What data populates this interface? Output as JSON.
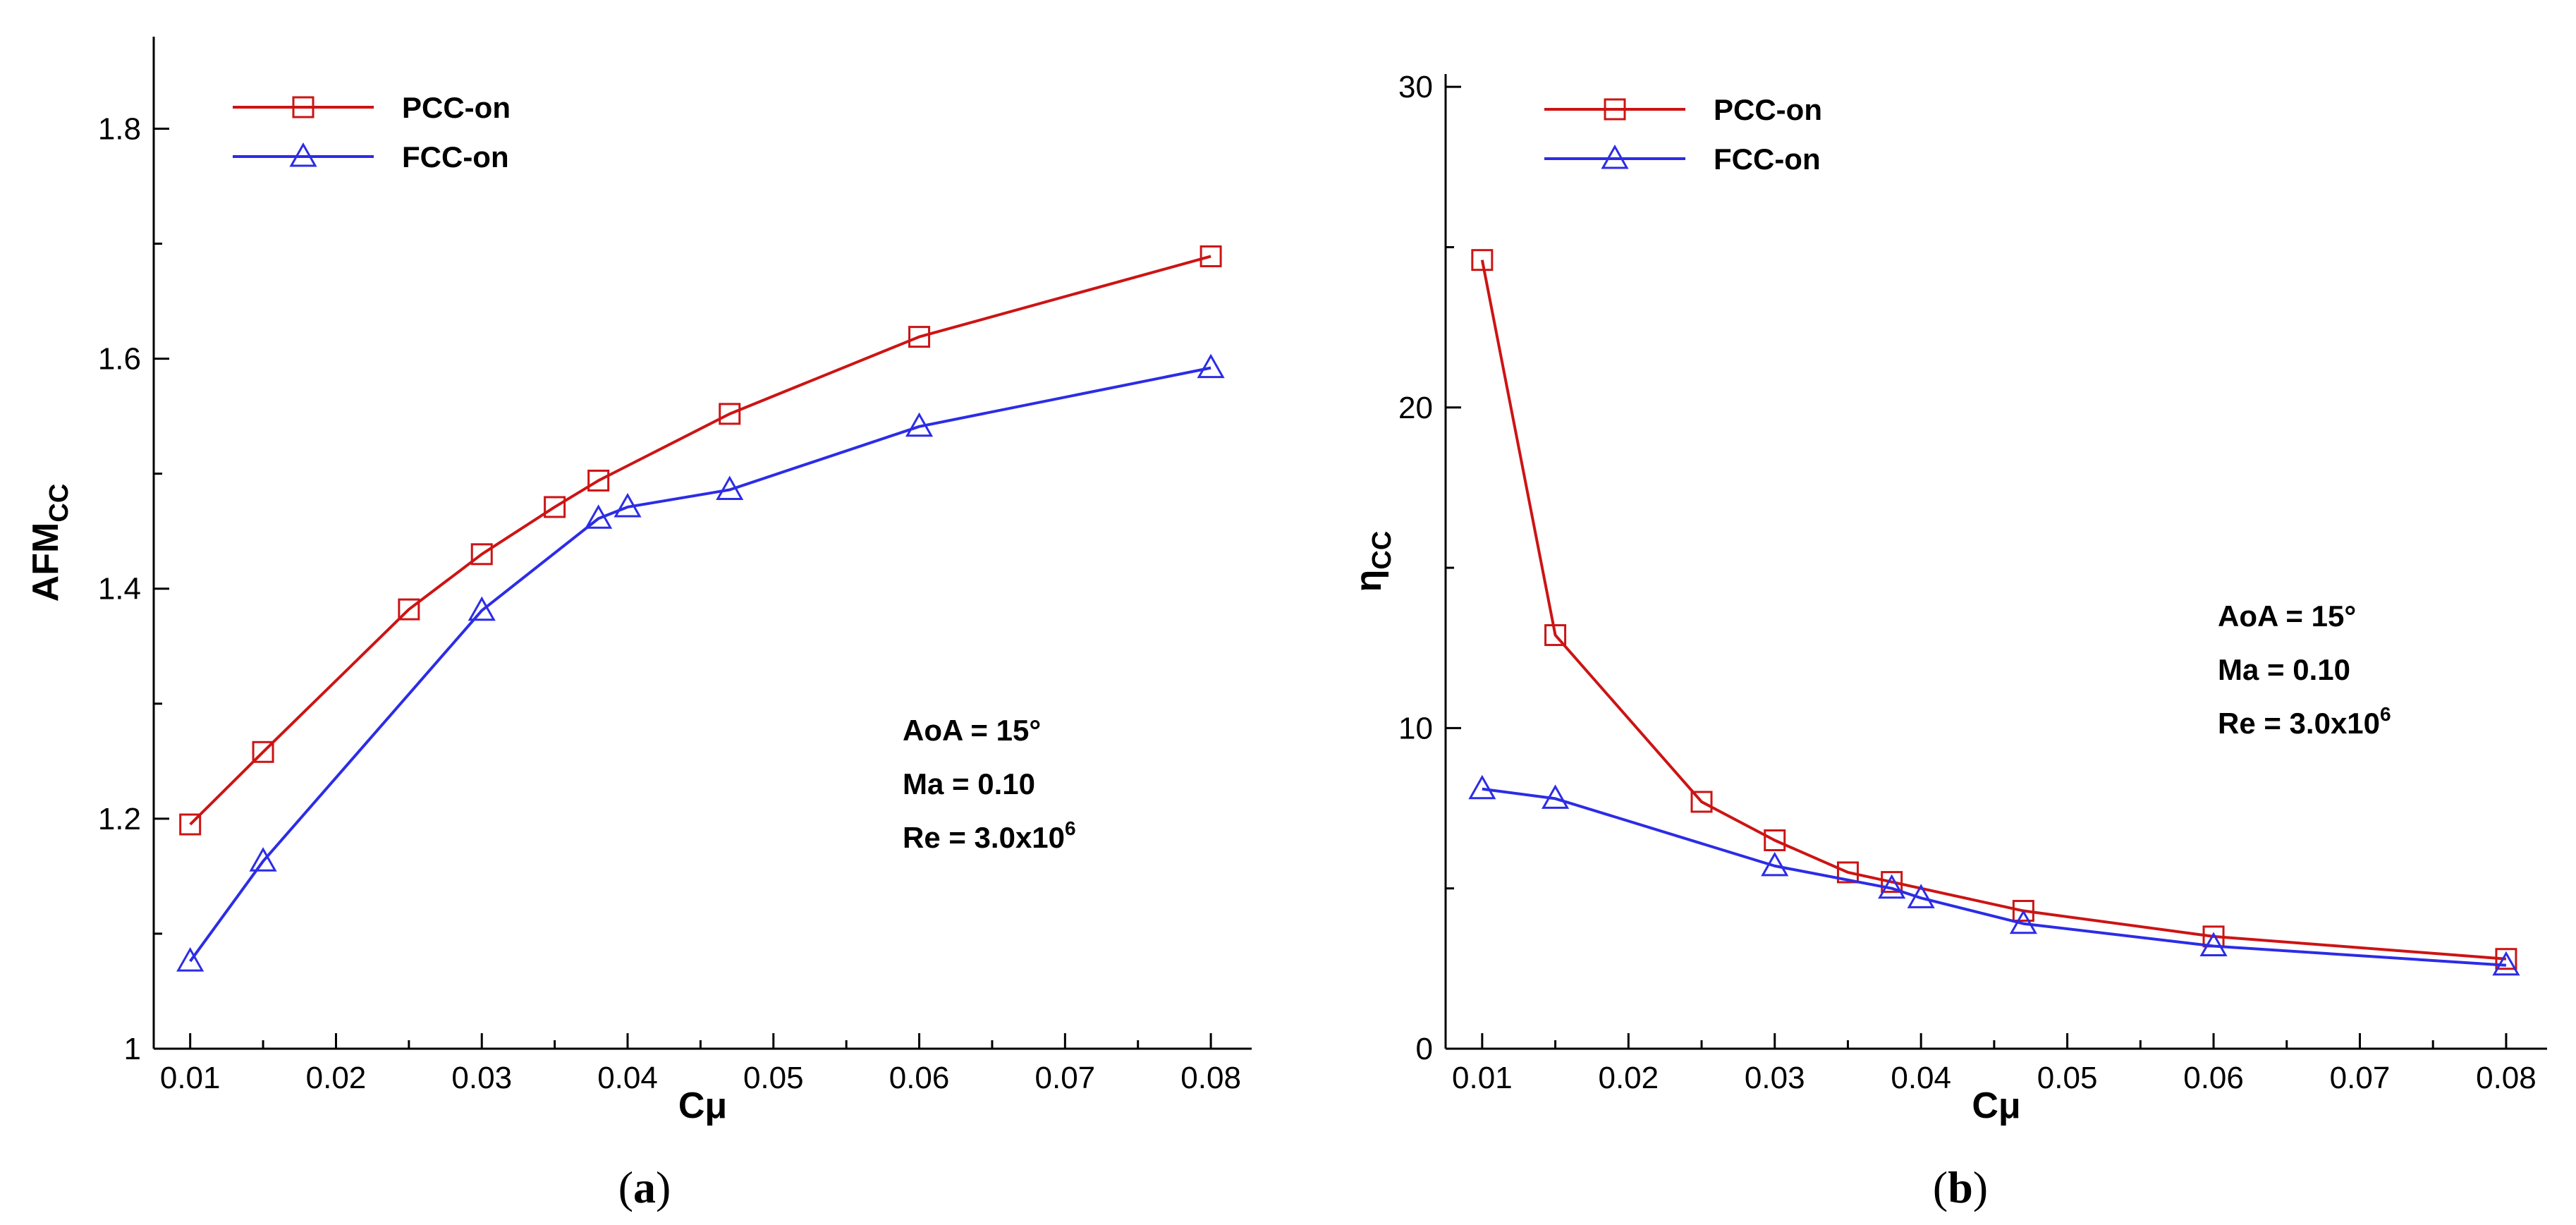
{
  "chart_data": [
    {
      "id": "a",
      "type": "line",
      "caption": "a",
      "xlabel": "Cμ",
      "ylabel": "AFM",
      "ylabel_sub": "CC",
      "xlim": [
        0.0075,
        0.0828
      ],
      "ylim": [
        1.0,
        1.88
      ],
      "xticks": [
        0.01,
        0.02,
        0.03,
        0.04,
        0.05,
        0.06,
        0.07,
        0.08
      ],
      "xtick_labels": [
        "0.01",
        "0.02",
        "0.03",
        "0.04",
        "0.05",
        "0.06",
        "0.07",
        "0.08"
      ],
      "yticks": [
        1.0,
        1.2,
        1.4,
        1.6,
        1.8
      ],
      "ytick_labels": [
        "1",
        "1.2",
        "1.4",
        "1.6",
        "1.8"
      ],
      "legend_position": "top-left",
      "series": [
        {
          "name": "PCC-on",
          "color": "#cc1414",
          "marker": "square",
          "x": [
            0.01,
            0.015,
            0.025,
            0.03,
            0.035,
            0.038,
            0.047,
            0.06,
            0.08
          ],
          "y": [
            1.195,
            1.258,
            1.382,
            1.43,
            1.471,
            1.494,
            1.552,
            1.619,
            1.689
          ]
        },
        {
          "name": "FCC-on",
          "color": "#2c2ce6",
          "marker": "triangle",
          "x": [
            0.01,
            0.015,
            0.03,
            0.038,
            0.04,
            0.047,
            0.06,
            0.08
          ],
          "y": [
            1.076,
            1.163,
            1.381,
            1.461,
            1.471,
            1.486,
            1.541,
            1.592
          ]
        }
      ],
      "annotations": [
        "AoA = 15°",
        "Ma = 0.10",
        "Re = 3.0x10"
      ],
      "annotation_superscript": "6"
    },
    {
      "id": "b",
      "type": "line",
      "caption": "b",
      "xlabel": "Cμ",
      "ylabel": "η",
      "ylabel_sub": "CC",
      "xlim": [
        0.0075,
        0.0828
      ],
      "ylim": [
        0,
        30.4
      ],
      "xticks": [
        0.01,
        0.02,
        0.03,
        0.04,
        0.05,
        0.06,
        0.07,
        0.08
      ],
      "xtick_labels": [
        "0.01",
        "0.02",
        "0.03",
        "0.04",
        "0.05",
        "0.06",
        "0.07",
        "0.08"
      ],
      "yticks": [
        0,
        10,
        20,
        30
      ],
      "ytick_labels": [
        "0",
        "10",
        "20",
        "30"
      ],
      "legend_position": "top-left",
      "series": [
        {
          "name": "PCC-on",
          "color": "#cc1414",
          "marker": "square",
          "x": [
            0.01,
            0.015,
            0.025,
            0.03,
            0.035,
            0.038,
            0.047,
            0.06,
            0.08
          ],
          "y": [
            24.6,
            12.9,
            7.7,
            6.5,
            5.5,
            5.2,
            4.3,
            3.5,
            2.8
          ]
        },
        {
          "name": "FCC-on",
          "color": "#2c2ce6",
          "marker": "triangle",
          "x": [
            0.01,
            0.015,
            0.03,
            0.038,
            0.04,
            0.047,
            0.06,
            0.08
          ],
          "y": [
            8.1,
            7.8,
            5.7,
            5.0,
            4.7,
            3.9,
            3.2,
            2.6
          ]
        }
      ],
      "annotations": [
        "AoA = 15°",
        "Ma = 0.10",
        "Re = 3.0x10"
      ],
      "annotation_superscript": "6"
    }
  ]
}
